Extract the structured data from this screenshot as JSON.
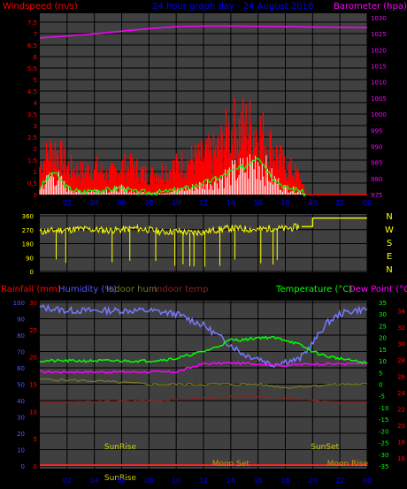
{
  "header": {
    "wind_label": "Windspeed (m/s)",
    "title": "24 hour graph day - 24 August 2018",
    "baro_label": "Barometer (hpa)"
  },
  "mid_header": {
    "rain_label": "Rainfall (mm)",
    "hum_label": "Humidity (%)",
    "indoor_hum_label": "Indoor hum",
    "indoor_temp_label": "Indoor temp",
    "temp_label": "Temperature (°C)",
    "dew_label": "Dew Point (°C)"
  },
  "colors": {
    "wind": "#ff0000",
    "gust": "#ff0000",
    "avg": "#00ff00",
    "lull": "#ffffff",
    "baro": "#ff00ff",
    "dir": "#ffff00",
    "humidity": "#7777ff",
    "temp": "#00ff00",
    "dew": "#ff00ff",
    "indoor_temp": "#882222",
    "indoor_hum": "#777722",
    "rain": "#ff2222",
    "hour_label": "#0000ff",
    "axis_red": "#ff0000",
    "axis_blue": "#5555ff",
    "axis_mag": "#ff00ff",
    "axis_yellow": "#ffff00",
    "axis_green": "#00ff00",
    "sun": "#cccc00",
    "moon": "#cc9900"
  },
  "chart_data": [
    {
      "type": "line",
      "title": "24 hour graph day - 24 August 2018",
      "x_ticks": [
        "02",
        "04",
        "06",
        "08",
        "10",
        "12",
        "14",
        "16",
        "18",
        "20",
        "22",
        "00"
      ],
      "left_axis": {
        "label": "Windspeed (m/s)",
        "ticks": [
          "0",
          "0.5",
          "1",
          "1.5",
          "2",
          "2.5",
          "3",
          "3.5",
          "4",
          "4.5",
          "5",
          "5.5",
          "6",
          "6.5",
          "7",
          "7.5"
        ],
        "ylim": [
          0,
          7.5
        ]
      },
      "right_axis": {
        "label": "Barometer (hpa)",
        "ticks": [
          "975",
          "980",
          "985",
          "990",
          "995",
          "1000",
          "1005",
          "1010",
          "1015",
          "1020",
          "1025",
          "1030"
        ],
        "ylim": [
          975,
          1030
        ]
      },
      "series": [
        {
          "name": "gust",
          "x": [
            0,
            1,
            2,
            3,
            4,
            5,
            6,
            7,
            8,
            9,
            10,
            11,
            12,
            13,
            14,
            15,
            16,
            17,
            18,
            19,
            19.5
          ],
          "y": [
            1.5,
            2.5,
            1.5,
            1.2,
            1.5,
            1.0,
            1.5,
            1.4,
            1.0,
            1.3,
            1.5,
            1.8,
            2.0,
            2.3,
            3.4,
            3.6,
            3.5,
            2.5,
            1.5,
            1.0,
            0.0
          ]
        },
        {
          "name": "average",
          "x": [
            0,
            1,
            2,
            3,
            4,
            5,
            6,
            7,
            8,
            9,
            10,
            11,
            12,
            13,
            14,
            15,
            16,
            17,
            18,
            19,
            19.5
          ],
          "y": [
            0.3,
            1.0,
            0.3,
            0.1,
            0.2,
            0.2,
            0.3,
            0.1,
            0.1,
            0.1,
            0.2,
            0.3,
            0.5,
            0.7,
            1.0,
            1.2,
            1.7,
            0.8,
            0.3,
            0.2,
            0.0
          ]
        },
        {
          "name": "barometer",
          "x": [
            0,
            2,
            4,
            6,
            8,
            10,
            12,
            14,
            16,
            18,
            20,
            22,
            24
          ],
          "y": [
            1023.7,
            1024.3,
            1025.0,
            1025.8,
            1026.6,
            1027.2,
            1027.4,
            1027.4,
            1027.3,
            1027.2,
            1027.1,
            1027.0,
            1026.9
          ]
        }
      ]
    },
    {
      "type": "line",
      "left_axis": {
        "ticks": [
          "0",
          "90",
          "180",
          "270",
          "360"
        ],
        "ylim": [
          0,
          360
        ]
      },
      "right_axis": {
        "ticks": [
          "N",
          "W",
          "S",
          "E",
          "N"
        ]
      },
      "series": [
        {
          "name": "direction",
          "x": [
            0,
            1,
            2,
            3,
            4,
            5,
            6,
            7,
            8,
            9,
            10,
            11,
            12,
            13,
            14,
            15,
            16,
            17,
            18,
            19,
            20,
            22,
            24
          ],
          "y": [
            255,
            265,
            270,
            275,
            270,
            265,
            270,
            280,
            270,
            255,
            260,
            250,
            255,
            270,
            280,
            275,
            270,
            280,
            275,
            290,
            345,
            345,
            345
          ]
        }
      ]
    },
    {
      "type": "line",
      "x_ticks": [
        "02",
        "04",
        "06",
        "08",
        "10",
        "12",
        "14",
        "16",
        "18",
        "20",
        "22",
        "00"
      ],
      "left_outer_axis": {
        "label": "Rainfall (mm)",
        "ticks": [
          "0",
          "5",
          "10",
          "15",
          "20",
          "25",
          "30"
        ],
        "ylim": [
          0,
          30
        ]
      },
      "left_inner_axis": {
        "label": "Humidity (%)",
        "ticks": [
          "0",
          "10",
          "20",
          "30",
          "40",
          "50",
          "60",
          "70",
          "80",
          "90",
          "100"
        ],
        "ylim": [
          0,
          100
        ]
      },
      "right_inner_axis": {
        "label": "Temperature (°C)",
        "ticks": [
          "-35",
          "-30",
          "-25",
          "-20",
          "-15",
          "-10",
          "-5",
          "0",
          "5",
          "10",
          "15",
          "20",
          "25",
          "30",
          "35"
        ],
        "ylim": [
          -35,
          35
        ]
      },
      "right_outer_axis": {
        "label": "Dew Point (°C)",
        "ticks": [
          "16",
          "18",
          "20",
          "22",
          "24",
          "26",
          "28",
          "30",
          "32",
          "34"
        ],
        "ylim": [
          15,
          35
        ]
      },
      "series": [
        {
          "name": "humidity",
          "x": [
            0,
            2,
            4,
            6,
            8,
            10,
            12,
            13,
            14,
            15,
            16,
            17,
            18,
            19,
            20,
            21,
            22,
            23,
            24
          ],
          "y": [
            97,
            95,
            95,
            95,
            95,
            93,
            86,
            80,
            74,
            68,
            66,
            62,
            64,
            65,
            75,
            87,
            93,
            95,
            96
          ]
        },
        {
          "name": "temperature",
          "x": [
            0,
            2,
            4,
            6,
            8,
            10,
            12,
            13,
            14,
            15,
            16,
            17,
            18,
            19,
            20,
            21,
            22,
            23,
            24
          ],
          "y": [
            10,
            10,
            10,
            10,
            10,
            11,
            14,
            16,
            19,
            19,
            20,
            20,
            19,
            17,
            14,
            12,
            11,
            10,
            9
          ]
        },
        {
          "name": "dew point",
          "x": [
            0,
            10,
            12,
            14,
            16,
            18,
            20,
            22,
            24
          ],
          "y": [
            26.5,
            26.5,
            27.5,
            27.6,
            27.5,
            27.3,
            27.5,
            27.5,
            27.5
          ]
        },
        {
          "name": "indoor temp",
          "x": [
            0,
            4,
            8,
            12,
            14,
            16,
            18,
            20,
            22,
            24
          ],
          "y": [
            -8,
            -7.5,
            -7,
            -6,
            -5,
            -5,
            -6,
            -7,
            -8,
            -8
          ]
        },
        {
          "name": "indoor hum",
          "x": [
            0,
            4,
            8,
            12,
            14,
            16,
            18,
            20,
            22,
            24
          ],
          "y": [
            53,
            52,
            50,
            50,
            50,
            50,
            48,
            49,
            50,
            50
          ]
        },
        {
          "name": "rainfall",
          "x": [
            0,
            24
          ],
          "y": [
            0,
            0
          ]
        }
      ],
      "annotations": [
        {
          "text": "SunRise",
          "x": 5.9
        },
        {
          "text": "SunSet",
          "x": 20.9
        },
        {
          "text": "Moon Set",
          "x": 14.0
        },
        {
          "text": "Moon Rise",
          "x": 23.7
        },
        {
          "text": "SunRise",
          "x": 5.9,
          "row": "bottom"
        }
      ]
    }
  ]
}
